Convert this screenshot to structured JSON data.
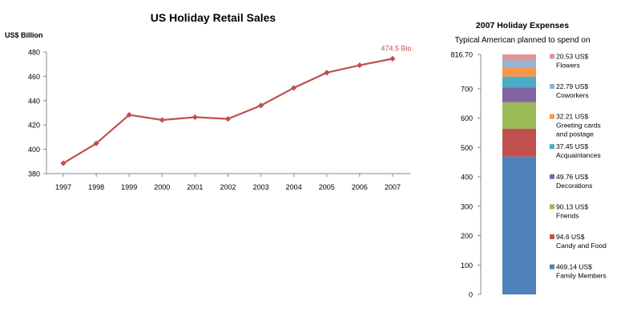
{
  "chart_data": [
    {
      "type": "line",
      "title": "US Holiday  Retail Sales",
      "ylabel": "US$ Billion",
      "xlabel": "",
      "x": [
        "1997",
        "1998",
        "1999",
        "2000",
        "2001",
        "2002",
        "2003",
        "2004",
        "2005",
        "2006",
        "2007"
      ],
      "series": [
        {
          "values": [
            388.5,
            404.8,
            428.3,
            424.1,
            426.4,
            425.0,
            436.0,
            450.5,
            463.0,
            469.1,
            474.5
          ]
        }
      ],
      "ylim": [
        380,
        480
      ],
      "yticks": [
        380,
        400,
        420,
        440,
        460,
        480
      ],
      "annotation": "474.5 Bio.",
      "line_color": "#c0504d",
      "grid": false
    },
    {
      "type": "bar",
      "subtype": "stacked",
      "title": "2007 Holiday Expenses",
      "subtitle": "Typical American planned to spend on",
      "ylim": [
        0,
        816.7
      ],
      "yticks": [
        "0",
        "100",
        "200",
        "300",
        "400",
        "500",
        "600",
        "700",
        "816.70"
      ],
      "ytick_values": [
        0,
        100,
        200,
        300,
        400,
        500,
        600,
        700,
        816.7
      ],
      "series": [
        {
          "value": 469.14,
          "label_value": "469.14 US$",
          "label_name": "Family Members",
          "color": "#4f81bd"
        },
        {
          "value": 94.6,
          "label_value": "94.6 US$",
          "label_name": "Candy and Food",
          "color": "#c0504d"
        },
        {
          "value": 90.13,
          "label_value": "90.13 US$",
          "label_name": "Friends",
          "color": "#9bbb59"
        },
        {
          "value": 49.76,
          "label_value": "49.76 US$",
          "label_name": "Decorations",
          "color": "#8064a2"
        },
        {
          "value": 37.45,
          "label_value": "37.45 US$",
          "label_name": "Acquaintances",
          "color": "#4bacc6"
        },
        {
          "value": 32.21,
          "label_value": "32.21 US$",
          "label_name": "Greeting cards and postage",
          "color": "#f79646"
        },
        {
          "value": 22.79,
          "label_value": "22.79 US$",
          "label_name": "Coworkers",
          "color": "#95b3d7"
        },
        {
          "value": 20.53,
          "label_value": "20.53 US$",
          "label_name": "Flowers",
          "color": "#d99694"
        }
      ],
      "grid": false,
      "legend_placement": "right"
    }
  ]
}
